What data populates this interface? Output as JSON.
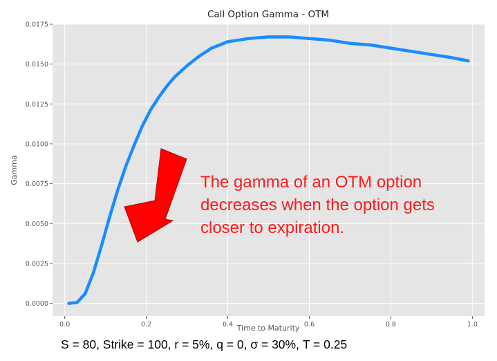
{
  "chart_data": {
    "type": "line",
    "title": "Call Option Gamma - OTM",
    "xlabel": "Time to Maturity",
    "ylabel": "Gamma",
    "xlim": [
      -0.03,
      1.03
    ],
    "ylim": [
      -0.0008,
      0.0175
    ],
    "xticks": [
      0.0,
      0.2,
      0.4,
      0.6,
      0.8,
      1.0
    ],
    "xtick_labels": [
      "0.0",
      "0.2",
      "0.4",
      "0.6",
      "0.8",
      "1.0"
    ],
    "yticks": [
      0.0,
      0.0025,
      0.005,
      0.0075,
      0.01,
      0.0125,
      0.015,
      0.0175
    ],
    "ytick_labels": [
      "0.0000",
      "0.0025",
      "0.0050",
      "0.0075",
      "0.0100",
      "0.0125",
      "0.0150",
      "0.0175"
    ],
    "grid": true,
    "series": [
      {
        "color": "#1a8cff",
        "x": [
          0.01,
          0.03,
          0.05,
          0.07,
          0.09,
          0.11,
          0.13,
          0.15,
          0.17,
          0.19,
          0.21,
          0.23,
          0.25,
          0.27,
          0.3,
          0.33,
          0.36,
          0.4,
          0.45,
          0.5,
          0.55,
          0.6,
          0.65,
          0.7,
          0.75,
          0.8,
          0.85,
          0.9,
          0.95,
          0.99
        ],
        "y": [
          0.0,
          5e-05,
          0.0006,
          0.0019,
          0.0036,
          0.0054,
          0.0071,
          0.0086,
          0.0099,
          0.0111,
          0.0121,
          0.0129,
          0.0136,
          0.0142,
          0.0149,
          0.0155,
          0.016,
          0.0164,
          0.0166,
          0.0167,
          0.0167,
          0.0166,
          0.0165,
          0.0163,
          0.0162,
          0.016,
          0.0158,
          0.0156,
          0.0154,
          0.0152
        ]
      }
    ]
  },
  "annotation": {
    "lines": [
      "The gamma of an OTM option",
      "decreases when the option gets",
      "closer to expiration."
    ],
    "color": "#ff1a1a",
    "arrow_color": "#ff0000"
  },
  "parameters_text": "S = 80, Strike = 100, r = 5%, q = 0, σ = 30%, T = 0.25"
}
